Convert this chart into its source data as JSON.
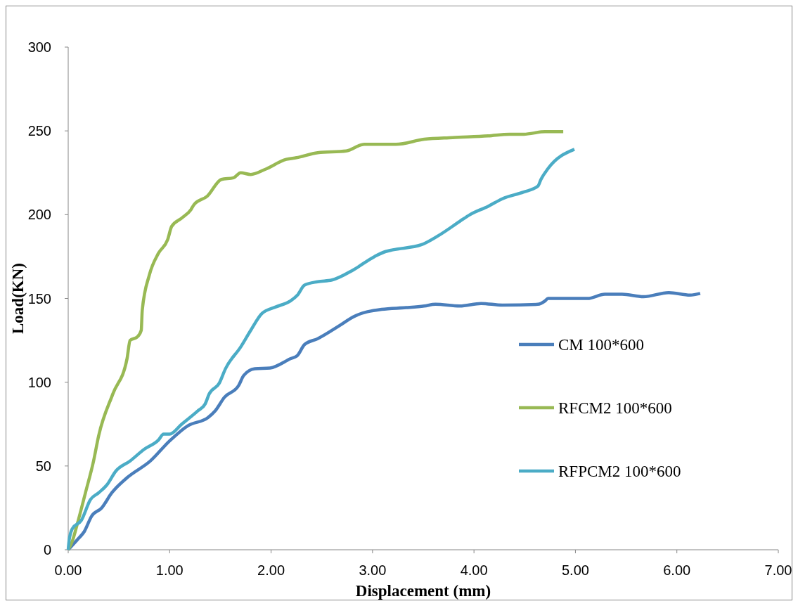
{
  "chart_data": {
    "type": "line",
    "xlabel": "Displacement (mm)",
    "ylabel": "Load(KN)",
    "xlim": [
      0,
      7
    ],
    "ylim": [
      0,
      300
    ],
    "xticks": [
      {
        "value": 0,
        "label": "0.00"
      },
      {
        "value": 1,
        "label": "1.00"
      },
      {
        "value": 2,
        "label": "2.00"
      },
      {
        "value": 3,
        "label": "3.00"
      },
      {
        "value": 4,
        "label": "4.00"
      },
      {
        "value": 5,
        "label": "5.00"
      },
      {
        "value": 6,
        "label": "6.00"
      },
      {
        "value": 7,
        "label": "7.00"
      }
    ],
    "yticks": [
      0,
      50,
      100,
      150,
      200,
      250,
      300
    ],
    "grid": false,
    "legend": "right",
    "marker": "none",
    "line_style": "solid",
    "series": [
      {
        "name": "CM 100*600",
        "color": "#4a7ebb",
        "x": [
          0,
          0.09,
          0.16,
          0.23,
          0.33,
          0.43,
          0.58,
          0.81,
          1.0,
          1.18,
          1.38,
          1.45,
          1.54,
          1.68,
          1.73,
          1.84,
          1.99,
          2.19,
          2.26,
          2.33,
          2.46,
          2.68,
          2.81,
          3.09,
          3.33,
          3.51,
          3.62,
          3.86,
          4.07,
          4.28,
          4.63,
          4.7,
          4.73,
          5.12,
          5.29,
          5.46,
          5.67,
          5.92,
          6.13,
          6.23
        ],
        "values": [
          0,
          6,
          11,
          20,
          25,
          34,
          43,
          53,
          65,
          74,
          79,
          83,
          91,
          98,
          104,
          108,
          108.5,
          114,
          116,
          122.5,
          126,
          134,
          139,
          143.5,
          144.5,
          145.5,
          146.5,
          145.5,
          147,
          146,
          146.5,
          148.5,
          150,
          150,
          152.5,
          152.5,
          151,
          153.5,
          152,
          153
        ]
      },
      {
        "name": "RFCM2 100*600",
        "color": "#98b954",
        "x": [
          0,
          0.04,
          0.09,
          0.17,
          0.25,
          0.3,
          0.44,
          0.58,
          0.61,
          0.68,
          0.72,
          0.73,
          0.8,
          0.89,
          0.98,
          1.02,
          1.12,
          1.21,
          1.24,
          1.37,
          1.51,
          1.63,
          1.7,
          1.8,
          1.94,
          2.15,
          2.25,
          2.46,
          2.74,
          2.92,
          3.23,
          3.51,
          3.79,
          4.14,
          4.35,
          4.49,
          4.7,
          4.88
        ],
        "values": [
          0,
          5,
          15.5,
          34,
          53,
          68,
          93,
          114,
          125,
          127,
          131,
          143,
          164,
          177,
          185,
          193,
          198,
          203,
          206,
          211,
          221,
          222,
          225,
          224,
          227,
          233,
          234,
          237,
          238,
          242,
          242,
          245,
          246,
          247,
          248,
          248,
          249.5,
          249.5
        ]
      },
      {
        "name": "RFPCM2 100*600",
        "color": "#4bacc6",
        "x": [
          0,
          0.01,
          0.04,
          0.13,
          0.22,
          0.3,
          0.38,
          0.47,
          0.61,
          0.75,
          0.89,
          0.94,
          1.0,
          1.12,
          1.28,
          1.35,
          1.39,
          1.49,
          1.55,
          1.7,
          1.8,
          1.91,
          2.05,
          2.19,
          2.26,
          2.33,
          2.46,
          2.6,
          2.81,
          3.02,
          3.13,
          3.2,
          3.48,
          3.65,
          3.86,
          3.96,
          4.14,
          4.28,
          4.49,
          4.63,
          4.66,
          4.73,
          4.99
        ],
        "values": [
          0,
          6,
          12.5,
          17.6,
          30,
          34,
          38.6,
          47,
          53,
          60,
          65.5,
          69,
          69,
          75,
          83,
          87,
          93,
          99.5,
          108,
          121,
          131,
          141,
          145,
          148.5,
          152,
          158,
          160,
          161,
          167,
          175,
          178,
          179,
          182,
          187.5,
          196,
          200,
          205,
          209.5,
          213.5,
          217,
          221,
          227.5,
          239
        ]
      }
    ]
  }
}
